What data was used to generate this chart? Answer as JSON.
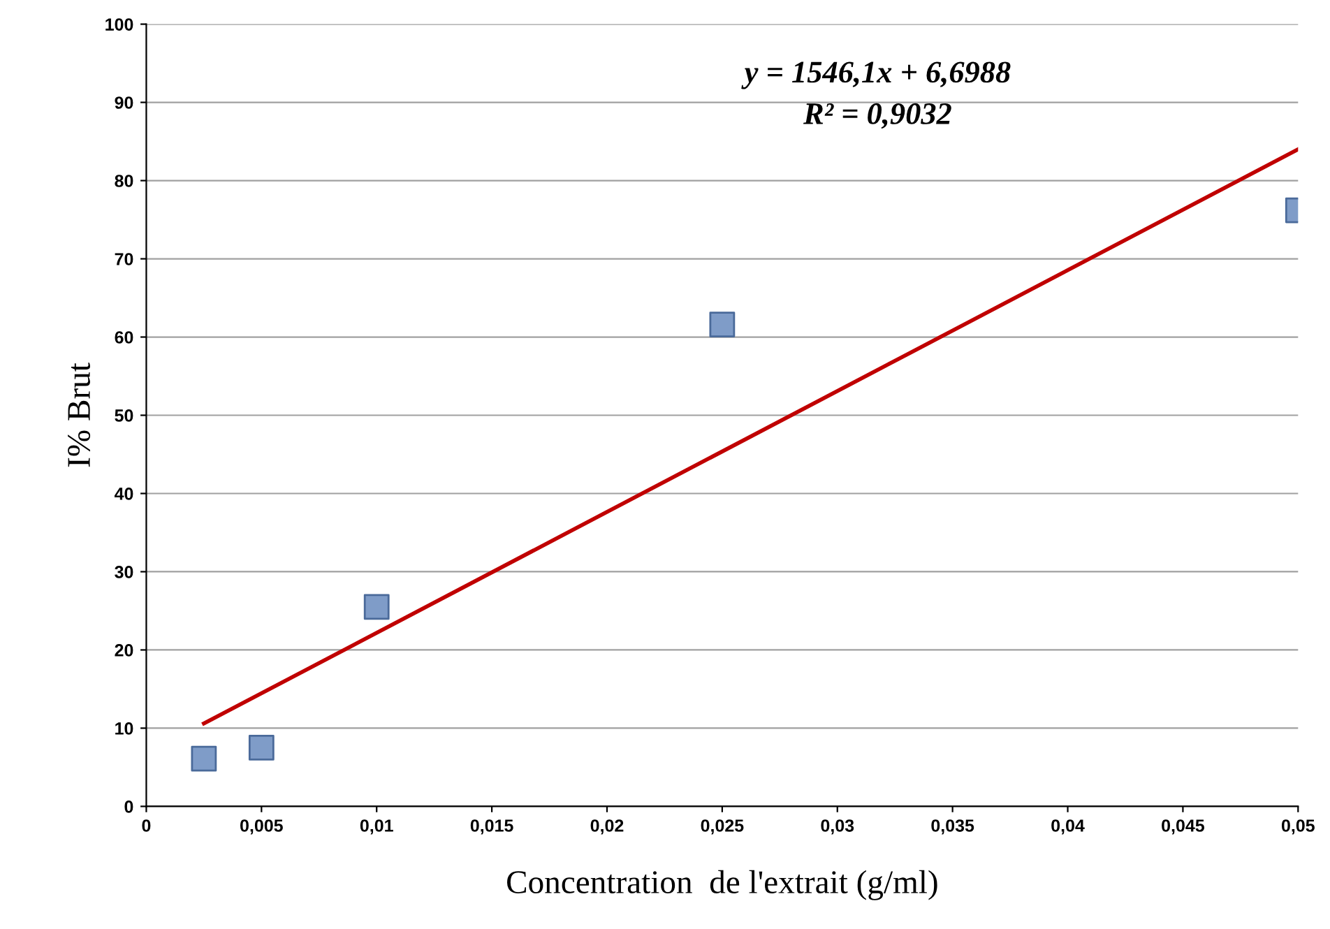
{
  "chart_data": {
    "type": "scatter",
    "xlabel": "Concentration  de l'extrait (g/ml)",
    "ylabel": "I% Brut",
    "annotations": [
      "y = 1546,1x + 6,6988",
      "R² = 0,9032"
    ],
    "series": [
      {
        "color": "#7f9cc8",
        "marker": "square",
        "x": [
          0.0025,
          0.005,
          0.01,
          0.025,
          0.05
        ],
        "values": [
          6.1,
          7.5,
          25.5,
          61.6,
          76.2
        ]
      },
      {
        "type": "line",
        "color": "#c00000",
        "marker": "none",
        "line_style": "solid",
        "x": [
          0.0025,
          0.05
        ],
        "values": [
          10.6,
          84.0
        ]
      }
    ],
    "xlim": [
      0,
      0.05
    ],
    "ylim": [
      0,
      100
    ],
    "xticks": [
      0,
      {
        "value": 0.005,
        "label": "0,005"
      },
      {
        "value": 0.01,
        "label": "0,01"
      },
      {
        "value": 0.015,
        "label": "0,015"
      },
      {
        "value": 0.02,
        "label": "0,02"
      },
      {
        "value": 0.025,
        "label": "0,025"
      },
      {
        "value": 0.03,
        "label": "0,03"
      },
      {
        "value": 0.035,
        "label": "0,035"
      },
      {
        "value": 0.04,
        "label": "0,04"
      },
      {
        "value": 0.045,
        "label": "0,045"
      },
      {
        "value": 0.05,
        "label": "0,05"
      }
    ],
    "yticks": [
      0,
      10,
      20,
      30,
      40,
      50,
      60,
      70,
      80,
      90,
      100
    ],
    "grid": "y",
    "legend": false
  }
}
